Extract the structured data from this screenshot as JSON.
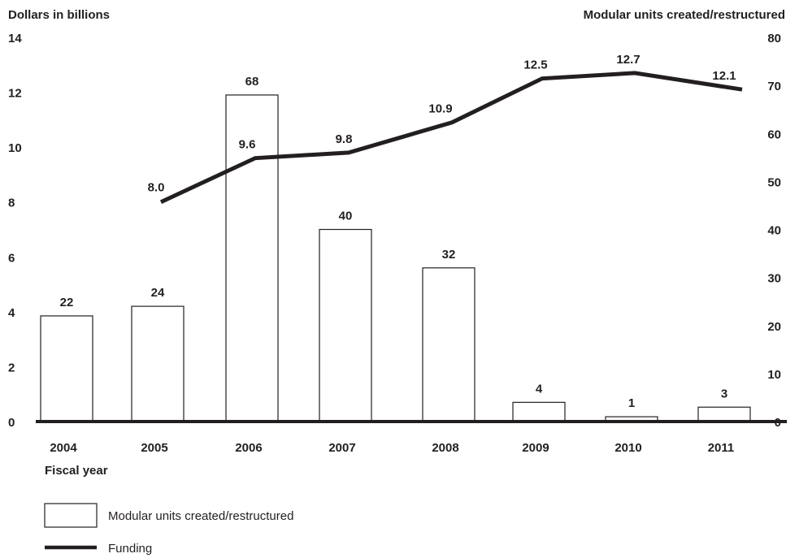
{
  "chart_data": {
    "type": "bar+line",
    "left_axis_title": "Dollars in billions",
    "right_axis_title": "Modular units created/restructured",
    "xlabel": "Fiscal year",
    "left_ylim": [
      0,
      14
    ],
    "left_yticks": [
      "0",
      "2",
      "4",
      "6",
      "8",
      "10",
      "12",
      "14"
    ],
    "right_ylim": [
      0,
      80
    ],
    "right_yticks": [
      "0",
      "10",
      "20",
      "30",
      "40",
      "50",
      "60",
      "70",
      "80"
    ],
    "categories": [
      "2004",
      "2005",
      "2006",
      "2007",
      "2008",
      "2009",
      "2010",
      "2011"
    ],
    "bars": {
      "name": "Modular units created/restructured",
      "axis": "right",
      "values": [
        22,
        24,
        68,
        40,
        32,
        4,
        1,
        3
      ],
      "labels": [
        "22",
        "24",
        "68",
        "40",
        "32",
        "4",
        "1",
        "3"
      ]
    },
    "line": {
      "name": "Funding",
      "axis": "left",
      "x": [
        "2005",
        "2006",
        "2007",
        "2008",
        "2009",
        "2010",
        "2011"
      ],
      "values": [
        8.0,
        9.6,
        9.8,
        10.9,
        12.5,
        12.7,
        12.1
      ],
      "labels": [
        "8.0",
        "9.6",
        "9.8",
        "10.9",
        "12.5",
        "12.7",
        "12.1"
      ]
    },
    "legend": [
      {
        "name": "Modular units created/restructured",
        "marker": "box"
      },
      {
        "name": "Funding",
        "marker": "line"
      }
    ],
    "legend_position": "bottom-left",
    "grid": false,
    "colors": {
      "ink": "#231f20",
      "bar_fill": "#ffffff"
    }
  }
}
